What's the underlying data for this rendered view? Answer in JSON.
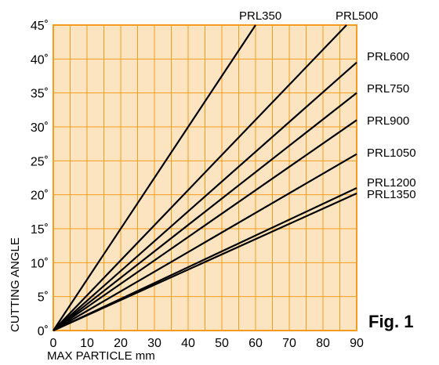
{
  "chart_data": {
    "type": "line",
    "title": "",
    "xlabel": "MAX PARTICLE mm",
    "ylabel": "CUTTING ANGLE",
    "xlim": [
      0,
      90
    ],
    "ylim": [
      0,
      45
    ],
    "x_ticks": [
      0,
      10,
      20,
      30,
      40,
      50,
      60,
      70,
      80,
      90
    ],
    "y_ticks": [
      0,
      5,
      10,
      15,
      20,
      25,
      30,
      35,
      40,
      45
    ],
    "x_tick_labels": [
      "0",
      "10",
      "20",
      "30",
      "40",
      "50",
      "60",
      "70",
      "80",
      "90"
    ],
    "y_tick_labels": [
      "0˚",
      "5˚",
      "10˚",
      "15˚",
      "20˚",
      "25˚",
      "30˚",
      "35˚",
      "40˚",
      "45˚"
    ],
    "grid": true,
    "background_color": "#fde4c0",
    "grid_color": "#f39c1e",
    "line_color": "#000000",
    "series": [
      {
        "name": "PRL350",
        "x": [
          0,
          60
        ],
        "y": [
          0,
          45
        ]
      },
      {
        "name": "PRL500",
        "x": [
          0,
          87
        ],
        "y": [
          0,
          45
        ]
      },
      {
        "name": "PRL600",
        "x": [
          0,
          90
        ],
        "y": [
          0,
          39.5
        ]
      },
      {
        "name": "PRL750",
        "x": [
          0,
          90
        ],
        "y": [
          0,
          35
        ]
      },
      {
        "name": "PRL900",
        "x": [
          0,
          90
        ],
        "y": [
          0,
          31
        ]
      },
      {
        "name": "PRL1050",
        "x": [
          0,
          90
        ],
        "y": [
          0,
          26
        ]
      },
      {
        "name": "PRL1200",
        "x": [
          0,
          90
        ],
        "y": [
          0,
          21
        ]
      },
      {
        "name": "PRL1350",
        "x": [
          0,
          90
        ],
        "y": [
          0,
          20.2
        ]
      }
    ]
  },
  "figure_label": "Fig. 1"
}
